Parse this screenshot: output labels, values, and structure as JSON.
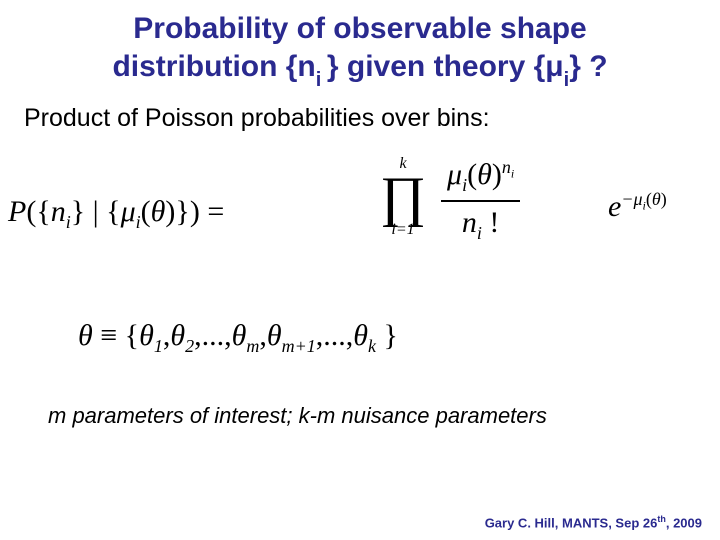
{
  "title": {
    "line1": "Probability of observable shape",
    "line2_a": "distribution {n",
    "line2_sub": "i ",
    "line2_b": "} given theory {μ",
    "line2_sub2": "i",
    "line2_c": "} ?"
  },
  "subtitle": "Product of Poisson probabilities over bins:",
  "eq": {
    "P": "P",
    "lparen": "(",
    "lbrace": "{",
    "n": "n",
    "i": "i",
    "rbrace": "}",
    "bar": " | ",
    "mu": "μ",
    "theta": "θ",
    "rparen": ")",
    "eqsign": " ",
    "arrow_glyph": "",
    "prod_upper": "k",
    "prod_symbol": "∏",
    "prod_lower": "i=1",
    "num_text_a": "μ",
    "num_text_b": "(",
    "num_theta": "θ",
    "num_text_c": ")",
    "num_sup_n": "n",
    "den_n": "n",
    "den_i": "i",
    "den_bang": " !",
    "e": "e",
    "exp_minus": "−μ",
    "equals": "="
  },
  "thetadef": {
    "theta": "θ",
    "equiv": " ≡ ",
    "body_a": "{",
    "t1": "θ",
    "s1": "1",
    "comma": ",",
    "t2": "θ",
    "s2": "2",
    "dots": ",...,",
    "tm": "θ",
    "sm": "m",
    "tm1": "θ",
    "sm1": "m+1",
    "tk": "θ",
    "sk": "k",
    "body_z": " }"
  },
  "bottomnote": "m parameters of interest; k-m nuisance parameters",
  "footer": {
    "a": "Gary C. Hill, MANTS, Sep 26",
    "th": "th",
    "b": ", 2009"
  },
  "colors": {
    "title": "#2a2a8f",
    "text": "#000000",
    "background": "#ffffff"
  }
}
